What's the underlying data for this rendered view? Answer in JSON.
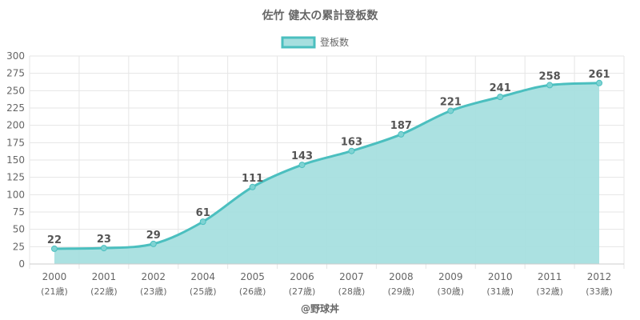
{
  "chart_data": {
    "type": "area",
    "title": "佐竹 健太の累計登板数",
    "legend": {
      "label": "登板数",
      "placement": "top-center"
    },
    "categories": [
      "2000",
      "2001",
      "2002",
      "2004",
      "2005",
      "2006",
      "2007",
      "2008",
      "2009",
      "2010",
      "2011",
      "2012"
    ],
    "ages": [
      "(21歳)",
      "(22歳)",
      "(23歳)",
      "(25歳)",
      "(26歳)",
      "(27歳)",
      "(28歳)",
      "(29歳)",
      "(30歳)",
      "(31歳)",
      "(32歳)",
      "(33歳)"
    ],
    "series": [
      {
        "name": "登板数",
        "values": [
          22,
          23,
          29,
          61,
          111,
          143,
          163,
          187,
          221,
          241,
          258,
          261
        ]
      }
    ],
    "ylim": [
      0,
      300
    ],
    "yticks": [
      "0",
      "25",
      "50",
      "75",
      "100",
      "125",
      "150",
      "175",
      "200",
      "225",
      "250",
      "275",
      "300"
    ],
    "grid": true,
    "colors": {
      "line": "#4bbfbf",
      "fill": "#a6dfdf",
      "grid": "#e6e6e6"
    }
  },
  "credit": "@野球丼"
}
